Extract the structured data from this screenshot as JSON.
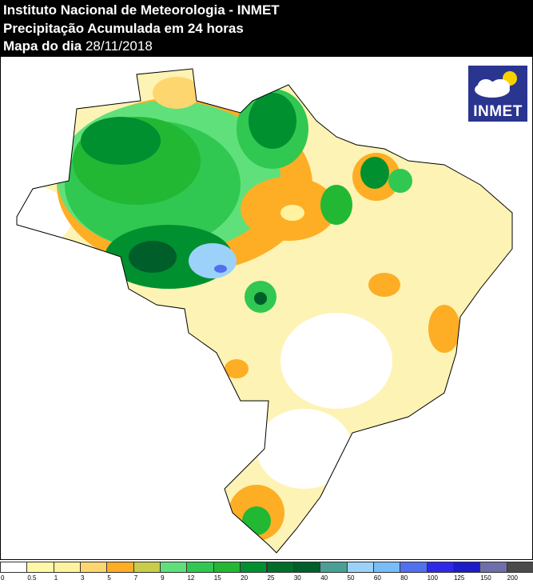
{
  "header": {
    "line1": "Instituto Nacional de Meteorologia - INMET",
    "line2": "Precipitação Acumulada em 24 horas",
    "line3_label": "Mapa do dia",
    "line3_date": "28/11/2018"
  },
  "logo": {
    "text": "INMET"
  },
  "legend": {
    "labels": [
      "0",
      "0.5",
      "1",
      "3",
      "5",
      "7",
      "9",
      "12",
      "15",
      "20",
      "25",
      "30",
      "40",
      "50",
      "60",
      "80",
      "100",
      "125",
      "150",
      "200"
    ],
    "colors": [
      "#ffffff",
      "#fff8a8",
      "#fff3a0",
      "#fed670",
      "#fdae24",
      "#c9cc48",
      "#60e07a",
      "#30c850",
      "#22b834",
      "#009030",
      "#006e2a",
      "#005e2a",
      "#4aa096",
      "#9cd2fa",
      "#78bcf8",
      "#5070f0",
      "#3028e8",
      "#1c1cc8",
      "#6e6eaa",
      "#4a4a4a"
    ]
  }
}
